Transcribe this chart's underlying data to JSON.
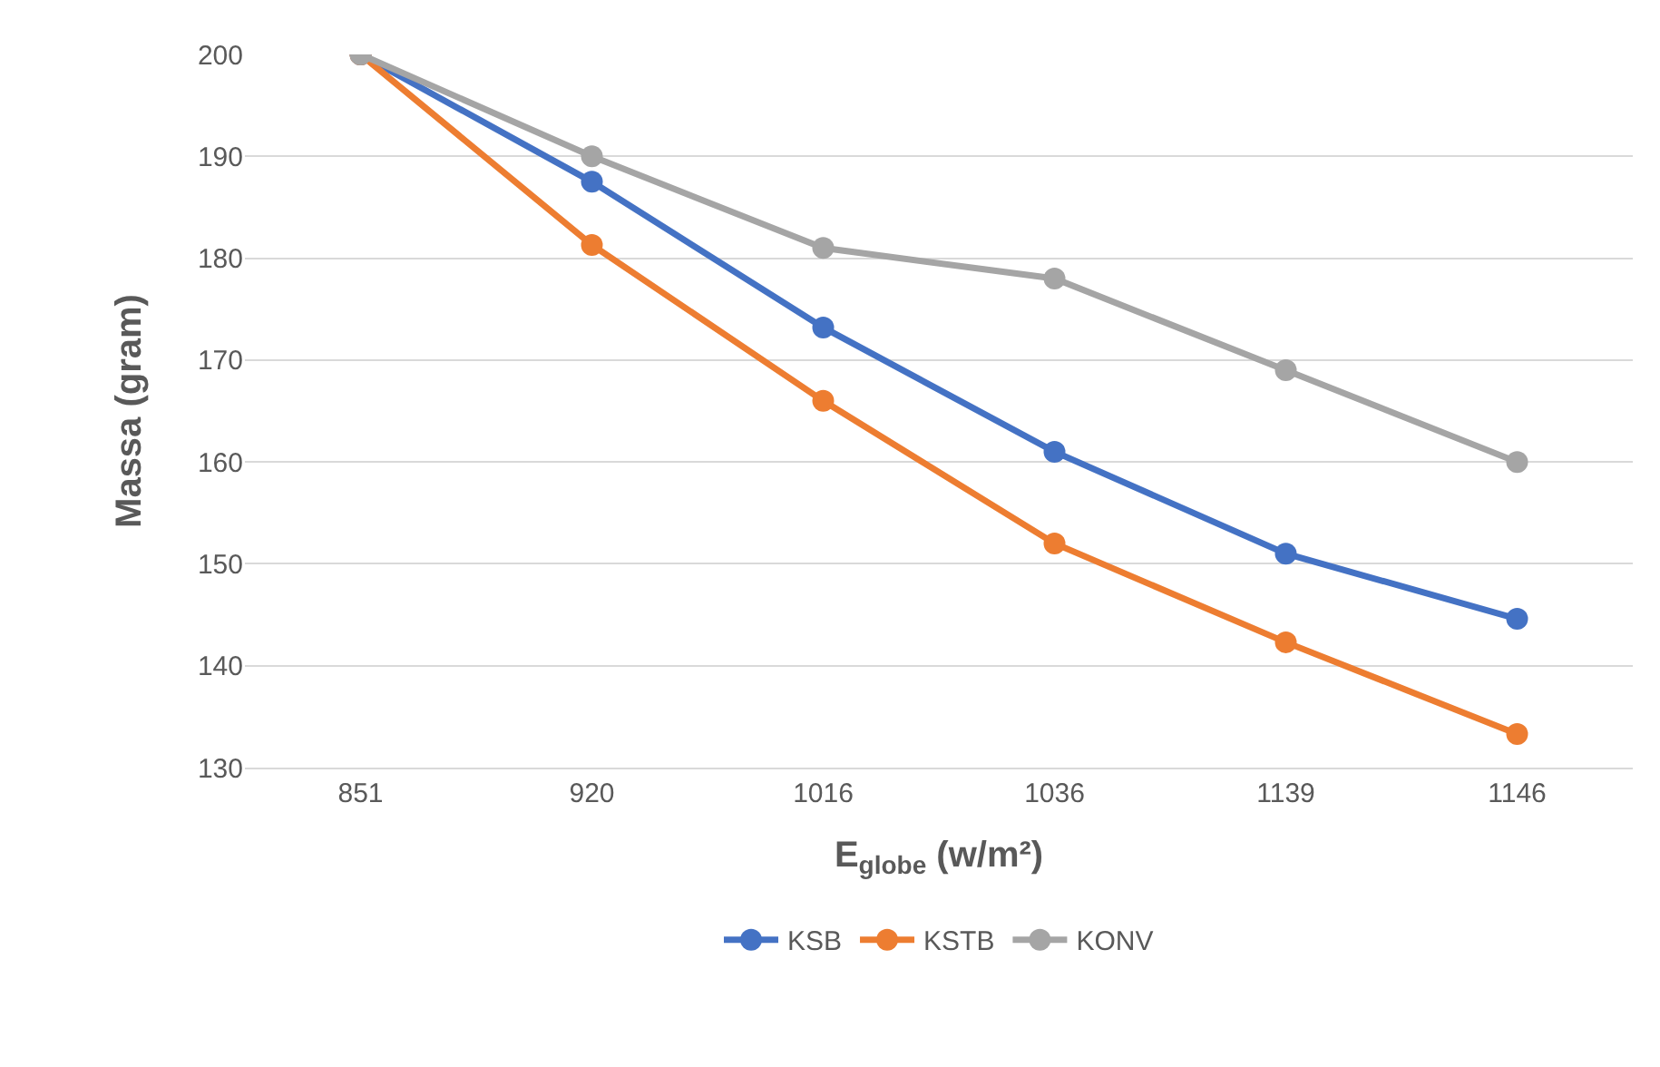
{
  "chart_data": {
    "type": "line",
    "xlabel": "E$_{globe}$ (w/m²)",
    "ylabel": "Massa (gram)",
    "categories": [
      "851",
      "920",
      "1016",
      "1036",
      "1139",
      "1146"
    ],
    "series": [
      {
        "name": "KSB",
        "color": "#4472c4",
        "values": [
          200,
          187.5,
          173.2,
          161,
          151,
          144.6
        ]
      },
      {
        "name": "KSTB",
        "color": "#ed7d31",
        "values": [
          200,
          181.3,
          166,
          152,
          142.3,
          133.3
        ]
      },
      {
        "name": "KONV",
        "color": "#a5a5a5",
        "values": [
          200,
          190,
          181,
          178,
          169,
          160
        ]
      }
    ],
    "ylim": [
      130,
      200
    ],
    "yticks": [
      130,
      140,
      150,
      160,
      170,
      180,
      190,
      200
    ],
    "grid": "y",
    "legend": "bottom",
    "marker": "circle",
    "line_style": "solid"
  }
}
